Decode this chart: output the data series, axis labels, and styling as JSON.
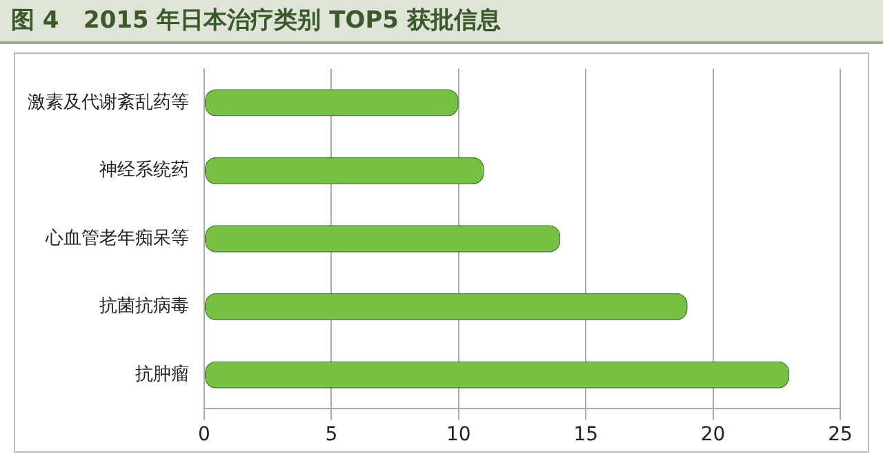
{
  "chart_data": {
    "type": "bar",
    "orientation": "horizontal",
    "title": "图 4   2015 年日本治疗类别 TOP5 获批信息",
    "categories": [
      "激素及代谢紊乱药等",
      "神经系统药",
      "心血管老年痴呆等",
      "抗菌抗病毒",
      "抗肿瘤"
    ],
    "values": [
      10,
      11,
      14,
      19,
      23
    ],
    "color": "#76c043",
    "xlim": [
      0,
      25
    ],
    "xticks": [
      0,
      5,
      10,
      15,
      20,
      25
    ],
    "grid": "x"
  }
}
